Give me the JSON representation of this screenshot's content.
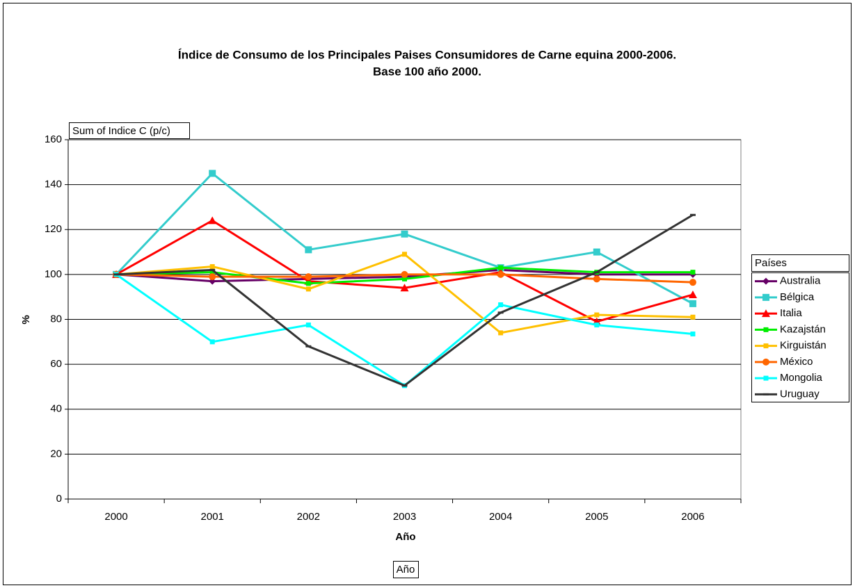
{
  "chart_data": {
    "type": "line",
    "title": "Índice de Consumo de los Principales Paises Consumidores de Carne equina 2000-2006.",
    "subtitle": "Base 100 año 2000.",
    "data_field": "Sum of Indice C (p/c)",
    "y_label": "%",
    "x_label": "Año",
    "page_field": "Año",
    "legend_title": "Países",
    "legend": "right",
    "grid": true,
    "categories": [
      "2000",
      "2001",
      "2002",
      "2003",
      "2004",
      "2005",
      "2006"
    ],
    "ylim": [
      0,
      160
    ],
    "yticks": [
      0,
      20,
      40,
      60,
      80,
      100,
      120,
      140,
      160
    ],
    "series": [
      {
        "name": "Australia",
        "color": "#660066",
        "marker": "diamond",
        "values": [
          100,
          97,
          98,
          99,
          102,
          100,
          100
        ]
      },
      {
        "name": "Bélgica",
        "color": "#33cccc",
        "marker": "square",
        "values": [
          100,
          145,
          111,
          118,
          103,
          110,
          87
        ]
      },
      {
        "name": "Italia",
        "color": "#ff0000",
        "marker": "triangle",
        "values": [
          100,
          124,
          97,
          94,
          101,
          79,
          91
        ]
      },
      {
        "name": "Kazajstán",
        "color": "#00ee00",
        "marker": "smallsquare",
        "values": [
          100,
          101,
          96,
          98,
          103,
          101,
          101
        ]
      },
      {
        "name": "Kirguistán",
        "color": "#ffc000",
        "marker": "smallsquare",
        "values": [
          100,
          103.5,
          93.5,
          109,
          74,
          82,
          81
        ]
      },
      {
        "name": "México",
        "color": "#ff6600",
        "marker": "circle",
        "values": [
          100,
          99,
          99,
          100,
          100,
          98,
          96.5
        ]
      },
      {
        "name": "Mongolia",
        "color": "#00ffff",
        "marker": "smallsquare",
        "values": [
          100,
          70,
          77.5,
          50.5,
          86.5,
          77.5,
          73.5
        ]
      },
      {
        "name": "Uruguay",
        "color": "#333333",
        "marker": "dash",
        "values": [
          100,
          102,
          68,
          50.5,
          83,
          101,
          126.5
        ]
      }
    ]
  }
}
